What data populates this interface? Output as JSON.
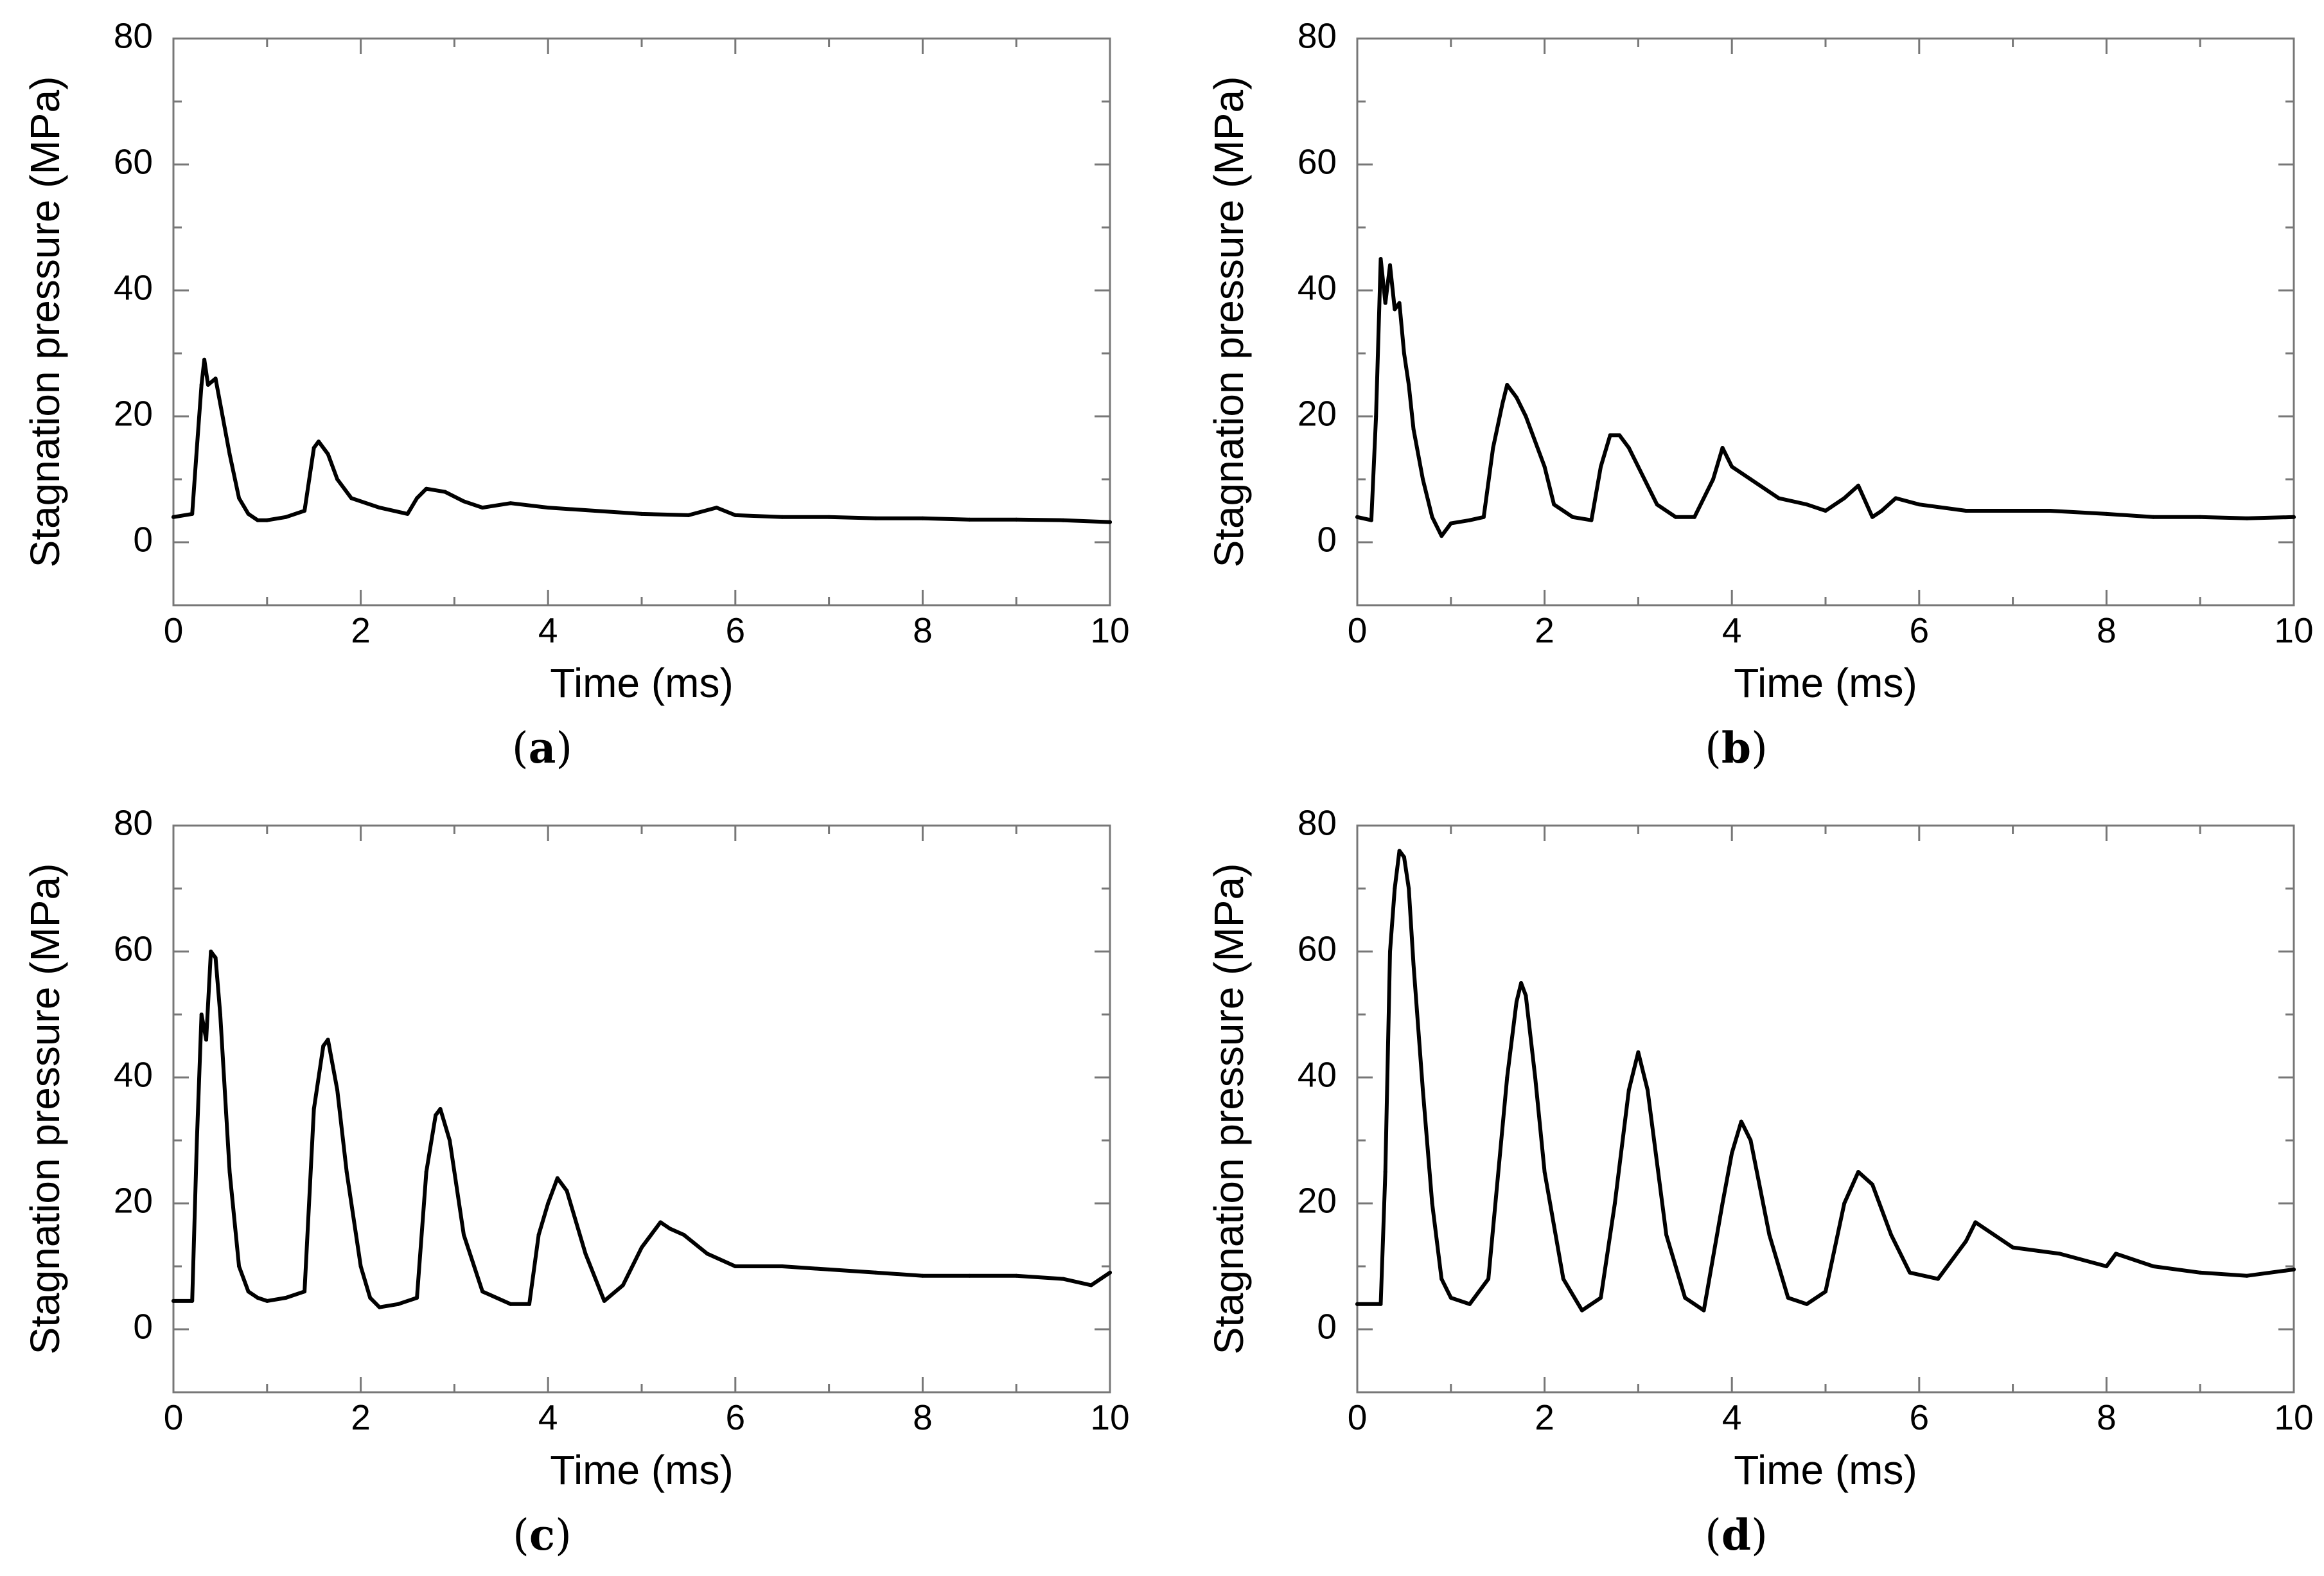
{
  "chart_data": [
    {
      "type": "line",
      "panel_label": "a",
      "xlabel": "Time (ms)",
      "ylabel": "Stagnation pressure (MPa)",
      "xlim": [
        0,
        10
      ],
      "ylim": [
        -10,
        80
      ],
      "xticks": [
        0,
        2,
        4,
        6,
        8,
        10
      ],
      "yticks": [
        0,
        20,
        40,
        60,
        80
      ],
      "series": [
        {
          "name": "pressure",
          "x": [
            0,
            0.2,
            0.25,
            0.3,
            0.33,
            0.37,
            0.45,
            0.5,
            0.6,
            0.7,
            0.8,
            0.9,
            1.0,
            1.2,
            1.4,
            1.45,
            1.5,
            1.55,
            1.65,
            1.75,
            1.9,
            2.2,
            2.5,
            2.6,
            2.7,
            2.9,
            3.1,
            3.3,
            3.6,
            4.0,
            4.5,
            5.0,
            5.5,
            5.8,
            6.0,
            6.5,
            7.0,
            7.5,
            8.0,
            8.5,
            9.0,
            9.5,
            10.0
          ],
          "values": [
            4,
            4.5,
            15,
            25,
            29,
            25,
            26,
            22,
            14,
            7,
            4.5,
            3.5,
            3.5,
            4,
            5,
            10,
            15,
            16,
            14,
            10,
            7,
            5.5,
            4.5,
            7,
            8.5,
            8,
            6.5,
            5.5,
            6.2,
            5.5,
            5,
            4.5,
            4.3,
            5.5,
            4.3,
            4,
            4,
            3.8,
            3.8,
            3.6,
            3.6,
            3.5,
            3.2
          ]
        }
      ]
    },
    {
      "type": "line",
      "panel_label": "b",
      "xlabel": "Time (ms)",
      "ylabel": "Stagnation pressure (MPa)",
      "xlim": [
        0,
        10
      ],
      "ylim": [
        -10,
        80
      ],
      "xticks": [
        0,
        2,
        4,
        6,
        8,
        10
      ],
      "yticks": [
        0,
        20,
        40,
        60,
        80
      ],
      "series": [
        {
          "name": "pressure",
          "x": [
            0,
            0.15,
            0.2,
            0.25,
            0.3,
            0.35,
            0.4,
            0.45,
            0.5,
            0.55,
            0.6,
            0.7,
            0.8,
            0.9,
            1.0,
            1.2,
            1.35,
            1.45,
            1.55,
            1.6,
            1.7,
            1.8,
            2.0,
            2.1,
            2.3,
            2.5,
            2.6,
            2.7,
            2.8,
            2.9,
            3.0,
            3.2,
            3.4,
            3.6,
            3.8,
            3.9,
            4.0,
            4.2,
            4.5,
            4.8,
            5.0,
            5.2,
            5.35,
            5.5,
            5.6,
            5.75,
            6.0,
            6.5,
            7.0,
            7.4,
            8.0,
            8.5,
            9.0,
            9.5,
            10.0
          ],
          "values": [
            4,
            3.5,
            20,
            45,
            38,
            44,
            37,
            38,
            30,
            25,
            18,
            10,
            4,
            1,
            3,
            3.5,
            4,
            15,
            22,
            25,
            23,
            20,
            12,
            6,
            4,
            3.5,
            12,
            17,
            17,
            15,
            12,
            6,
            4,
            4,
            10,
            15,
            12,
            10,
            7,
            6,
            5,
            7,
            9,
            4,
            5,
            7,
            6,
            5,
            5,
            5,
            4.5,
            4,
            4,
            3.8,
            4
          ]
        }
      ]
    },
    {
      "type": "line",
      "panel_label": "c",
      "xlabel": "Time (ms)",
      "ylabel": "Stagnation pressure (MPa)",
      "xlim": [
        0,
        10
      ],
      "ylim": [
        -10,
        80
      ],
      "xticks": [
        0,
        2,
        4,
        6,
        8,
        10
      ],
      "yticks": [
        0,
        20,
        40,
        60,
        80
      ],
      "series": [
        {
          "name": "pressure",
          "x": [
            0,
            0.2,
            0.25,
            0.3,
            0.35,
            0.4,
            0.45,
            0.5,
            0.6,
            0.7,
            0.8,
            0.9,
            1.0,
            1.2,
            1.4,
            1.5,
            1.6,
            1.65,
            1.75,
            1.85,
            2.0,
            2.1,
            2.2,
            2.4,
            2.6,
            2.7,
            2.8,
            2.85,
            2.95,
            3.1,
            3.3,
            3.6,
            3.8,
            3.9,
            4.0,
            4.1,
            4.2,
            4.4,
            4.6,
            4.8,
            5.0,
            5.2,
            5.3,
            5.45,
            5.7,
            6.0,
            6.5,
            7.0,
            7.5,
            8.0,
            8.5,
            9.0,
            9.5,
            9.8,
            10.0
          ],
          "values": [
            4.5,
            4.5,
            30,
            50,
            46,
            60,
            59,
            50,
            25,
            10,
            6,
            5,
            4.5,
            5,
            6,
            35,
            45,
            46,
            38,
            25,
            10,
            5,
            3.5,
            4,
            5,
            25,
            34,
            35,
            30,
            15,
            6,
            4,
            4,
            15,
            20,
            24,
            22,
            12,
            4.5,
            7,
            13,
            17,
            16,
            15,
            12,
            10,
            10,
            9.5,
            9,
            8.5,
            8.5,
            8.5,
            8,
            7,
            9
          ]
        }
      ]
    },
    {
      "type": "line",
      "panel_label": "d",
      "xlabel": "Time (ms)",
      "ylabel": "Stagnation pressure (MPa)",
      "xlim": [
        0,
        10
      ],
      "ylim": [
        -10,
        80
      ],
      "xticks": [
        0,
        2,
        4,
        6,
        8,
        10
      ],
      "yticks": [
        0,
        20,
        40,
        60,
        80
      ],
      "series": [
        {
          "name": "pressure",
          "x": [
            0,
            0.25,
            0.3,
            0.35,
            0.4,
            0.45,
            0.5,
            0.55,
            0.6,
            0.7,
            0.8,
            0.9,
            1.0,
            1.2,
            1.4,
            1.6,
            1.7,
            1.75,
            1.8,
            1.9,
            2.0,
            2.2,
            2.4,
            2.6,
            2.75,
            2.9,
            3.0,
            3.1,
            3.3,
            3.5,
            3.7,
            3.9,
            4.0,
            4.1,
            4.2,
            4.4,
            4.6,
            4.8,
            5.0,
            5.2,
            5.35,
            5.5,
            5.7,
            5.9,
            6.2,
            6.5,
            6.6,
            7.0,
            7.5,
            8.0,
            8.1,
            8.5,
            9.0,
            9.5,
            10.0
          ],
          "values": [
            4,
            4,
            25,
            60,
            70,
            76,
            75,
            70,
            58,
            38,
            20,
            8,
            5,
            4,
            8,
            40,
            52,
            55,
            53,
            40,
            25,
            8,
            3,
            5,
            20,
            38,
            44,
            38,
            15,
            5,
            3,
            20,
            28,
            33,
            30,
            15,
            5,
            4,
            6,
            20,
            25,
            23,
            15,
            9,
            8,
            14,
            17,
            13,
            12,
            10,
            12,
            10,
            9,
            8.5,
            9.5
          ]
        }
      ]
    }
  ]
}
